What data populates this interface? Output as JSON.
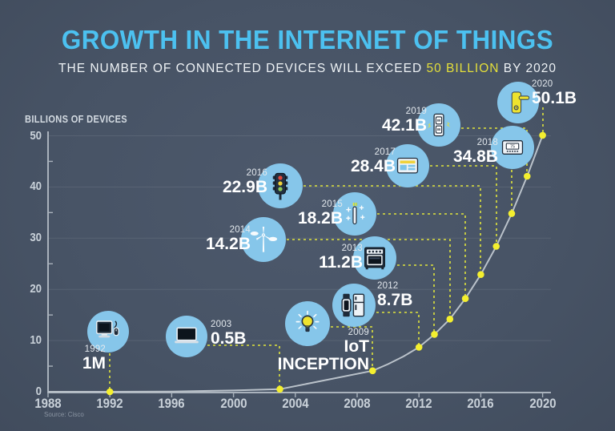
{
  "header": {
    "title": "GROWTH IN THE INTERNET OF THINGS",
    "subtitle_prefix": "THE NUMBER OF CONNECTED DEVICES WILL EXCEED ",
    "subtitle_highlight": "50 BILLION",
    "subtitle_suffix": " BY 2020"
  },
  "source": "Source: Cisco",
  "colors": {
    "background": "#4a5669",
    "title_blue": "#4cc1f0",
    "highlight_yellow": "#e4df3a",
    "bubble_blue": "#86c6ea",
    "curve_gray": "#bac2ca",
    "dashed_yellow": "#e0e43c",
    "dot_yellow": "#f4ef2f",
    "icon_navy": "#1e2a38"
  },
  "chart_data": {
    "type": "line",
    "title": "GROWTH IN THE INTERNET OF THINGS",
    "xlabel": "",
    "ylabel": "BILLIONS OF DEVICES",
    "xlim": [
      1988,
      2020
    ],
    "ylim": [
      0,
      50
    ],
    "grid": "horizontal",
    "x_ticks": [
      1988,
      1992,
      1996,
      2000,
      2004,
      2008,
      2012,
      2016,
      2020
    ],
    "y_ticks": [
      0,
      10,
      20,
      30,
      40,
      50
    ],
    "y_minor_ticks": [
      5,
      15,
      25,
      35,
      45
    ],
    "series": [
      {
        "name": "connected-devices-billions",
        "points": [
          [
            1988,
            0
          ],
          [
            1992,
            0.001
          ],
          [
            1996,
            0.05
          ],
          [
            2000,
            0.25
          ],
          [
            2003,
            0.5
          ],
          [
            2009,
            4.1
          ],
          [
            2010,
            5.4
          ],
          [
            2011,
            6.9
          ],
          [
            2012,
            8.7
          ],
          [
            2013,
            11.2
          ],
          [
            2014,
            14.2
          ],
          [
            2015,
            18.2
          ],
          [
            2016,
            22.9
          ],
          [
            2017,
            28.4
          ],
          [
            2018,
            34.8
          ],
          [
            2019,
            42.1
          ],
          [
            2020,
            50.1
          ]
        ]
      }
    ],
    "milestones": [
      {
        "year": 1992,
        "value_label": "1M",
        "value_billions": 0.001,
        "icon": "desktop-computer-icon"
      },
      {
        "year": 2003,
        "value_label": "0.5B",
        "value_billions": 0.5,
        "icon": "laptop-icon"
      },
      {
        "year": 2009,
        "value_label": "IoT\nINCEPTION",
        "value_billions": 4.1,
        "icon": "lightbulb-icon"
      },
      {
        "year": 2012,
        "value_label": "8.7B",
        "value_billions": 8.7,
        "icon": "smartwatch-and-fridge-icon"
      },
      {
        "year": 2013,
        "value_label": "11.2B",
        "value_billions": 11.2,
        "icon": "oven-icon"
      },
      {
        "year": 2014,
        "value_label": "14.2B",
        "value_billions": 14.2,
        "icon": "wind-turbine-icon"
      },
      {
        "year": 2015,
        "value_label": "18.2B",
        "value_billions": 18.2,
        "icon": "toothbrush-icon"
      },
      {
        "year": 2016,
        "value_label": "22.9B",
        "value_billions": 22.9,
        "icon": "traffic-light-icon"
      },
      {
        "year": 2017,
        "value_label": "28.4B",
        "value_billions": 28.4,
        "icon": "smart-panel-icon"
      },
      {
        "year": 2018,
        "value_label": "34.8B",
        "value_billions": 34.8,
        "icon": "thermostat-icon",
        "icon_text": "75"
      },
      {
        "year": 2019,
        "value_label": "42.1B",
        "value_billions": 42.1,
        "icon": "power-outlet-icon"
      },
      {
        "year": 2020,
        "value_label": "50.1B",
        "value_billions": 50.1,
        "icon": "smart-lock-icon"
      }
    ]
  }
}
